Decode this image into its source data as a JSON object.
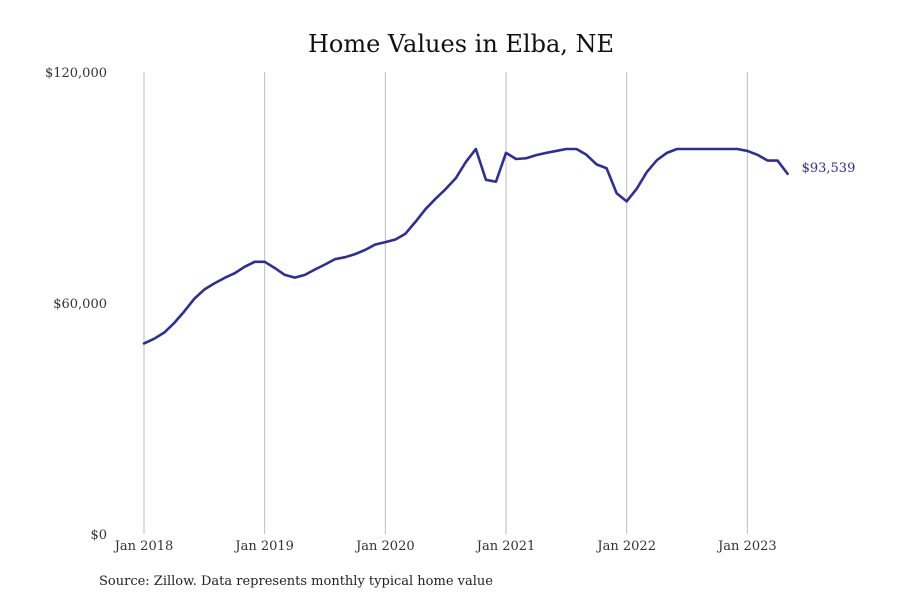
{
  "chart_data": {
    "type": "line",
    "title": "Home Values in Elba, NE",
    "xlabel": "",
    "ylabel": "",
    "ylim": [
      0,
      120000
    ],
    "yticks": [
      0,
      60000,
      120000
    ],
    "ytick_labels": [
      "$0",
      "$60,000",
      "$120,000"
    ],
    "xlim": [
      "2018-01",
      "2023-12"
    ],
    "xticks": [
      "2018-01",
      "2019-01",
      "2020-01",
      "2021-01",
      "2022-01",
      "2023-01"
    ],
    "xtick_labels": [
      "Jan 2018",
      "Jan 2019",
      "Jan 2020",
      "Jan 2021",
      "Jan 2022",
      "Jan 2023"
    ],
    "grid": "vertical",
    "line_color": "#2e2e96",
    "end_label": "$93,539",
    "series": [
      {
        "x": [
          "2018-01",
          "2018-02",
          "2018-03",
          "2018-04",
          "2018-05",
          "2018-06",
          "2018-07",
          "2018-08",
          "2018-09",
          "2018-10",
          "2018-11",
          "2018-12",
          "2019-01",
          "2019-02",
          "2019-03",
          "2019-04",
          "2019-05",
          "2019-06",
          "2019-07",
          "2019-08",
          "2019-09",
          "2019-10",
          "2019-11",
          "2019-12",
          "2020-01",
          "2020-02",
          "2020-03",
          "2020-04",
          "2020-05",
          "2020-06",
          "2020-07",
          "2020-08",
          "2020-09",
          "2020-10",
          "2020-11",
          "2020-12",
          "2021-01",
          "2021-02",
          "2021-03",
          "2021-04",
          "2021-05",
          "2021-06",
          "2021-07",
          "2021-08",
          "2021-09",
          "2021-10",
          "2021-11",
          "2021-12",
          "2022-01",
          "2022-02",
          "2022-03",
          "2022-04",
          "2022-05",
          "2022-06",
          "2022-07",
          "2022-08",
          "2022-09",
          "2022-10",
          "2022-11",
          "2022-12",
          "2023-01",
          "2023-02",
          "2023-03",
          "2023-04",
          "2023-05"
        ],
        "values": [
          49500,
          50700,
          52300,
          54800,
          57800,
          61100,
          63500,
          65100,
          66500,
          67700,
          69400,
          70700,
          70700,
          69100,
          67300,
          66600,
          67300,
          68700,
          70000,
          71400,
          71900,
          72700,
          73800,
          75200,
          75800,
          76500,
          78000,
          81100,
          84400,
          87100,
          89600,
          92400,
          96600,
          100000,
          92000,
          91500,
          99000,
          97400,
          97600,
          98400,
          99000,
          99500,
          100000,
          100000,
          98500,
          96000,
          95000,
          88500,
          86400,
          89700,
          94000,
          97100,
          99000,
          100000,
          100000,
          100000,
          100000,
          100000,
          100000,
          100000,
          99500,
          98500,
          97000,
          97000,
          93539
        ]
      }
    ]
  },
  "source_text": "Source: Zillow. Data represents monthly typical home value"
}
